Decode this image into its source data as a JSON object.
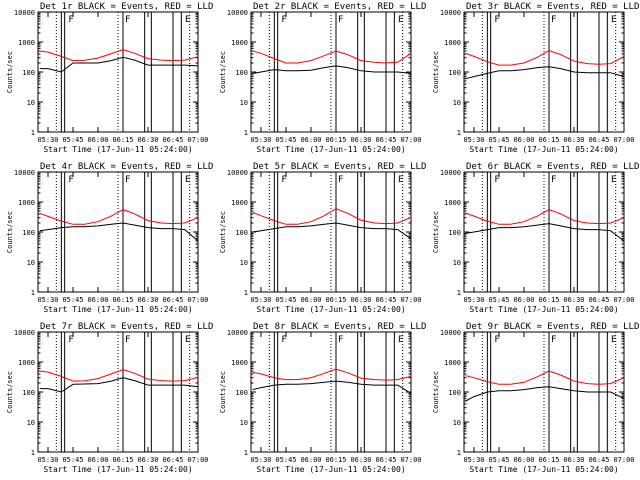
{
  "colors": {
    "events": "#000000",
    "lld": "#ff0000",
    "axes": "#000000",
    "background": "#ffffff"
  },
  "shared": {
    "ylabel": "Counts/sec",
    "xlabel": "Start Time (17-Jun-11 05:24:00)",
    "x_tick_labels": [
      "05:30",
      "05:45",
      "06:00",
      "06:15",
      "06:30",
      "06:45",
      "07:00"
    ],
    "y_tick_labels": [
      "1",
      "10",
      "100",
      "1000",
      "10000"
    ],
    "interval_markers": [
      "F",
      "F",
      "E"
    ]
  },
  "chart_data": [
    {
      "type": "line",
      "title": "Det 1r BLACK = Events, RED = LLD",
      "xlabel": "Start Time (17-Jun-11 05:24:00)",
      "ylabel": "Counts/sec",
      "yscale": "log",
      "ylim": [
        1,
        10000
      ],
      "xlim": [
        "05:24",
        "07:00"
      ],
      "series": [
        {
          "name": "Events",
          "color": "#000000",
          "x": [
            "05:25",
            "05:30",
            "05:38",
            "05:45",
            "05:52",
            "06:00",
            "06:08",
            "06:15",
            "06:22",
            "06:30",
            "06:38",
            "06:45",
            "06:52",
            "07:00"
          ],
          "values": [
            130,
            130,
            100,
            200,
            200,
            200,
            240,
            310,
            250,
            170,
            170,
            170,
            170,
            160
          ]
        },
        {
          "name": "LLD",
          "color": "#ff0000",
          "x": [
            "05:25",
            "05:30",
            "05:38",
            "05:45",
            "05:52",
            "06:00",
            "06:08",
            "06:15",
            "06:22",
            "06:30",
            "06:38",
            "06:45",
            "06:52",
            "07:00"
          ],
          "values": [
            500,
            460,
            330,
            240,
            245,
            290,
            410,
            560,
            420,
            280,
            250,
            240,
            250,
            320
          ]
        }
      ]
    },
    {
      "type": "line",
      "title": "Det 2r BLACK = Events, RED = LLD",
      "xlabel": "Start Time (17-Jun-11 05:24:00)",
      "ylabel": "Counts/sec",
      "yscale": "log",
      "ylim": [
        1,
        10000
      ],
      "xlim": [
        "05:24",
        "07:00"
      ],
      "series": [
        {
          "name": "Events",
          "color": "#000000",
          "x": [
            "05:25",
            "05:30",
            "05:38",
            "05:45",
            "05:52",
            "06:00",
            "06:08",
            "06:15",
            "06:22",
            "06:30",
            "06:38",
            "06:45",
            "06:52",
            "07:00"
          ],
          "values": [
            90,
            100,
            120,
            110,
            110,
            115,
            140,
            160,
            140,
            110,
            100,
            100,
            100,
            90
          ]
        },
        {
          "name": "LLD",
          "color": "#ff0000",
          "x": [
            "05:25",
            "05:30",
            "05:38",
            "05:45",
            "05:52",
            "06:00",
            "06:08",
            "06:15",
            "06:22",
            "06:30",
            "06:38",
            "06:45",
            "06:52",
            "07:00"
          ],
          "values": [
            500,
            420,
            280,
            200,
            200,
            240,
            350,
            500,
            380,
            240,
            210,
            200,
            210,
            420
          ]
        }
      ]
    },
    {
      "type": "line",
      "title": "Det 3r BLACK = Events, RED = LLD",
      "xlabel": "Start Time (17-Jun-11 05:24:00)",
      "ylabel": "Counts/sec",
      "yscale": "log",
      "ylim": [
        1,
        10000
      ],
      "xlim": [
        "05:24",
        "07:00"
      ],
      "series": [
        {
          "name": "Events",
          "color": "#000000",
          "x": [
            "05:25",
            "05:30",
            "05:38",
            "05:45",
            "05:52",
            "06:00",
            "06:08",
            "06:15",
            "06:22",
            "06:30",
            "06:38",
            "06:45",
            "06:52",
            "07:00"
          ],
          "values": [
            60,
            70,
            90,
            110,
            110,
            120,
            140,
            150,
            130,
            100,
            95,
            95,
            95,
            70
          ]
        },
        {
          "name": "LLD",
          "color": "#ff0000",
          "x": [
            "05:25",
            "05:30",
            "05:38",
            "05:45",
            "05:52",
            "06:00",
            "06:08",
            "06:15",
            "06:22",
            "06:30",
            "06:38",
            "06:45",
            "06:52",
            "07:00"
          ],
          "values": [
            420,
            330,
            220,
            170,
            170,
            200,
            310,
            520,
            380,
            230,
            190,
            180,
            190,
            330
          ]
        }
      ]
    },
    {
      "type": "line",
      "title": "Det 4r BLACK = Events, RED = LLD",
      "xlabel": "Start Time (17-Jun-11 05:24:00)",
      "ylabel": "Counts/sec",
      "yscale": "log",
      "ylim": [
        1,
        10000
      ],
      "xlim": [
        "05:24",
        "07:00"
      ],
      "series": [
        {
          "name": "Events",
          "color": "#000000",
          "x": [
            "05:25",
            "05:30",
            "05:38",
            "05:45",
            "05:52",
            "06:00",
            "06:08",
            "06:15",
            "06:22",
            "06:30",
            "06:38",
            "06:45",
            "06:52",
            "07:00"
          ],
          "values": [
            110,
            120,
            140,
            150,
            150,
            160,
            180,
            200,
            170,
            140,
            130,
            130,
            120,
            50
          ]
        },
        {
          "name": "LLD",
          "color": "#ff0000",
          "x": [
            "05:25",
            "05:30",
            "05:38",
            "05:45",
            "05:52",
            "06:00",
            "06:08",
            "06:15",
            "06:22",
            "06:30",
            "06:38",
            "06:45",
            "06:52",
            "07:00"
          ],
          "values": [
            420,
            330,
            230,
            180,
            180,
            220,
            340,
            560,
            400,
            240,
            200,
            190,
            200,
            300
          ]
        }
      ]
    },
    {
      "type": "line",
      "title": "Det 5r BLACK = Events, RED = LLD",
      "xlabel": "Start Time (17-Jun-11 05:24:00)",
      "ylabel": "Counts/sec",
      "yscale": "log",
      "ylim": [
        1,
        10000
      ],
      "xlim": [
        "05:24",
        "07:00"
      ],
      "series": [
        {
          "name": "Events",
          "color": "#000000",
          "x": [
            "05:25",
            "05:30",
            "05:38",
            "05:45",
            "05:52",
            "06:00",
            "06:08",
            "06:15",
            "06:22",
            "06:30",
            "06:38",
            "06:45",
            "06:52",
            "07:00"
          ],
          "values": [
            100,
            110,
            130,
            150,
            150,
            160,
            180,
            200,
            170,
            140,
            130,
            130,
            120,
            60
          ]
        },
        {
          "name": "LLD",
          "color": "#ff0000",
          "x": [
            "05:25",
            "05:30",
            "05:38",
            "05:45",
            "05:52",
            "06:00",
            "06:08",
            "06:15",
            "06:22",
            "06:30",
            "06:38",
            "06:45",
            "06:52",
            "07:00"
          ],
          "values": [
            450,
            350,
            240,
            180,
            180,
            220,
            350,
            600,
            420,
            250,
            200,
            190,
            200,
            310
          ]
        }
      ]
    },
    {
      "type": "line",
      "title": "Det 6r BLACK = Events, RED = LLD",
      "xlabel": "Start Time (17-Jun-11 05:24:00)",
      "ylabel": "Counts/sec",
      "yscale": "log",
      "ylim": [
        1,
        10000
      ],
      "xlim": [
        "05:24",
        "07:00"
      ],
      "series": [
        {
          "name": "Events",
          "color": "#000000",
          "x": [
            "05:25",
            "05:30",
            "05:38",
            "05:45",
            "05:52",
            "06:00",
            "06:08",
            "06:15",
            "06:22",
            "06:30",
            "06:38",
            "06:45",
            "06:52",
            "07:00"
          ],
          "values": [
            90,
            100,
            120,
            140,
            140,
            150,
            170,
            190,
            160,
            130,
            120,
            120,
            110,
            50
          ]
        },
        {
          "name": "LLD",
          "color": "#ff0000",
          "x": [
            "05:25",
            "05:30",
            "05:38",
            "05:45",
            "05:52",
            "06:00",
            "06:08",
            "06:15",
            "06:22",
            "06:30",
            "06:38",
            "06:45",
            "06:52",
            "07:00"
          ],
          "values": [
            430,
            340,
            230,
            180,
            180,
            220,
            340,
            560,
            400,
            240,
            200,
            190,
            200,
            300
          ]
        }
      ]
    },
    {
      "type": "line",
      "title": "Det 7r BLACK = Events, RED = LLD",
      "xlabel": "Start Time (17-Jun-11 05:24:00)",
      "ylabel": "Counts/sec",
      "yscale": "log",
      "ylim": [
        1,
        10000
      ],
      "xlim": [
        "05:24",
        "07:00"
      ],
      "series": [
        {
          "name": "Events",
          "color": "#000000",
          "x": [
            "05:25",
            "05:30",
            "05:38",
            "05:45",
            "05:52",
            "06:00",
            "06:08",
            "06:15",
            "06:22",
            "06:30",
            "06:38",
            "06:45",
            "06:52",
            "07:00"
          ],
          "values": [
            130,
            130,
            100,
            180,
            185,
            190,
            230,
            300,
            240,
            170,
            170,
            170,
            170,
            150
          ]
        },
        {
          "name": "LLD",
          "color": "#ff0000",
          "x": [
            "05:25",
            "05:30",
            "05:38",
            "05:45",
            "05:52",
            "06:00",
            "06:08",
            "06:15",
            "06:22",
            "06:30",
            "06:38",
            "06:45",
            "06:52",
            "07:00"
          ],
          "values": [
            500,
            460,
            330,
            230,
            235,
            280,
            400,
            560,
            420,
            270,
            240,
            230,
            240,
            310
          ]
        }
      ]
    },
    {
      "type": "line",
      "title": "Det 8r BLACK = Events, RED = LLD",
      "xlabel": "Start Time (17-Jun-11 05:24:00)",
      "ylabel": "Counts/sec",
      "yscale": "log",
      "ylim": [
        1,
        10000
      ],
      "xlim": [
        "05:24",
        "07:00"
      ],
      "series": [
        {
          "name": "Events",
          "color": "#000000",
          "x": [
            "05:25",
            "05:30",
            "05:38",
            "05:45",
            "05:52",
            "06:00",
            "06:08",
            "06:15",
            "06:22",
            "06:30",
            "06:38",
            "06:45",
            "06:52",
            "07:00"
          ],
          "values": [
            120,
            140,
            170,
            180,
            180,
            190,
            210,
            230,
            210,
            180,
            170,
            170,
            170,
            90
          ]
        },
        {
          "name": "LLD",
          "color": "#ff0000",
          "x": [
            "05:25",
            "05:30",
            "05:38",
            "05:45",
            "05:52",
            "06:00",
            "06:08",
            "06:15",
            "06:22",
            "06:30",
            "06:38",
            "06:45",
            "06:52",
            "07:00"
          ],
          "values": [
            450,
            400,
            300,
            260,
            260,
            300,
            420,
            580,
            440,
            290,
            260,
            250,
            260,
            330
          ]
        }
      ]
    },
    {
      "type": "line",
      "title": "Det 9r BLACK = Events, RED = LLD",
      "xlabel": "Start Time (17-Jun-11 05:24:00)",
      "ylabel": "Counts/sec",
      "yscale": "log",
      "ylim": [
        1,
        10000
      ],
      "xlim": [
        "05:24",
        "07:00"
      ],
      "series": [
        {
          "name": "Events",
          "color": "#000000",
          "x": [
            "05:25",
            "05:30",
            "05:38",
            "05:45",
            "05:52",
            "06:00",
            "06:08",
            "06:15",
            "06:22",
            "06:30",
            "06:38",
            "06:45",
            "06:52",
            "07:00"
          ],
          "values": [
            50,
            70,
            100,
            110,
            110,
            120,
            140,
            150,
            130,
            110,
            100,
            100,
            100,
            60
          ]
        },
        {
          "name": "LLD",
          "color": "#ff0000",
          "x": [
            "05:25",
            "05:30",
            "05:38",
            "05:45",
            "05:52",
            "06:00",
            "06:08",
            "06:15",
            "06:22",
            "06:30",
            "06:38",
            "06:45",
            "06:52",
            "07:00"
          ],
          "values": [
            350,
            300,
            220,
            180,
            180,
            210,
            320,
            500,
            370,
            230,
            190,
            180,
            190,
            300
          ]
        }
      ]
    }
  ]
}
